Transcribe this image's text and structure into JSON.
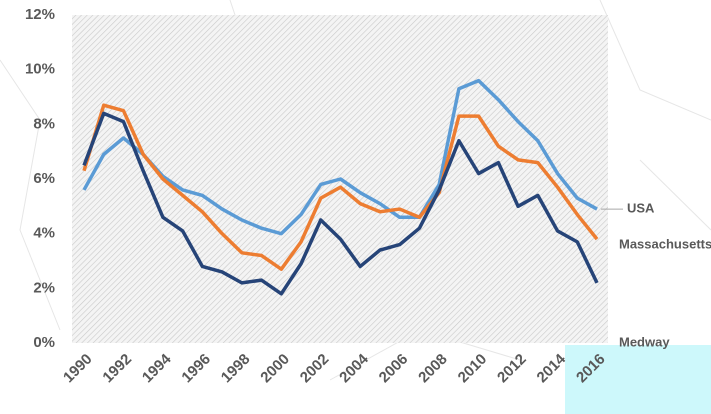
{
  "chart_data": {
    "type": "line",
    "categories": [
      "1990",
      null,
      "1992",
      null,
      "1994",
      null,
      "1996",
      null,
      "1998",
      null,
      "2000",
      null,
      "2002",
      null,
      "2004",
      null,
      "2006",
      null,
      "2008",
      null,
      "2010",
      null,
      "2012",
      null,
      "2014",
      null,
      "2016"
    ],
    "series": [
      {
        "name": "USA",
        "color": "#5b9bd5",
        "values": [
          5.6,
          6.9,
          7.5,
          6.9,
          6.1,
          5.6,
          5.4,
          4.9,
          4.5,
          4.2,
          4.0,
          4.7,
          5.8,
          6.0,
          5.5,
          5.1,
          4.6,
          4.6,
          5.8,
          9.3,
          9.6,
          8.9,
          8.1,
          7.4,
          6.2,
          5.3,
          4.9
        ]
      },
      {
        "name": "Massachusetts",
        "color": "#ed7d31",
        "values": [
          6.3,
          8.7,
          8.5,
          6.9,
          6.0,
          5.4,
          4.8,
          4.0,
          3.3,
          3.2,
          2.7,
          3.7,
          5.3,
          5.7,
          5.1,
          4.8,
          4.9,
          4.6,
          5.5,
          8.3,
          8.3,
          7.2,
          6.7,
          6.6,
          5.7,
          4.7,
          3.8
        ]
      },
      {
        "name": "Medway",
        "color": "#264478",
        "values": [
          6.5,
          8.4,
          8.1,
          6.3,
          4.6,
          4.1,
          2.8,
          2.6,
          2.2,
          2.3,
          1.8,
          2.9,
          4.5,
          3.8,
          2.8,
          3.4,
          3.6,
          4.2,
          5.6,
          7.4,
          6.2,
          6.6,
          5.0,
          5.4,
          4.1,
          3.7,
          2.2
        ]
      }
    ],
    "ylim": [
      0,
      12
    ],
    "yticks": [
      {
        "value": 0,
        "label": "0%"
      },
      {
        "value": 2,
        "label": "2%"
      },
      {
        "value": 4,
        "label": "4%"
      },
      {
        "value": 6,
        "label": "6%"
      },
      {
        "value": 8,
        "label": "8%"
      },
      {
        "value": 10,
        "label": "10%"
      },
      {
        "value": 12,
        "label": "12%"
      }
    ]
  }
}
